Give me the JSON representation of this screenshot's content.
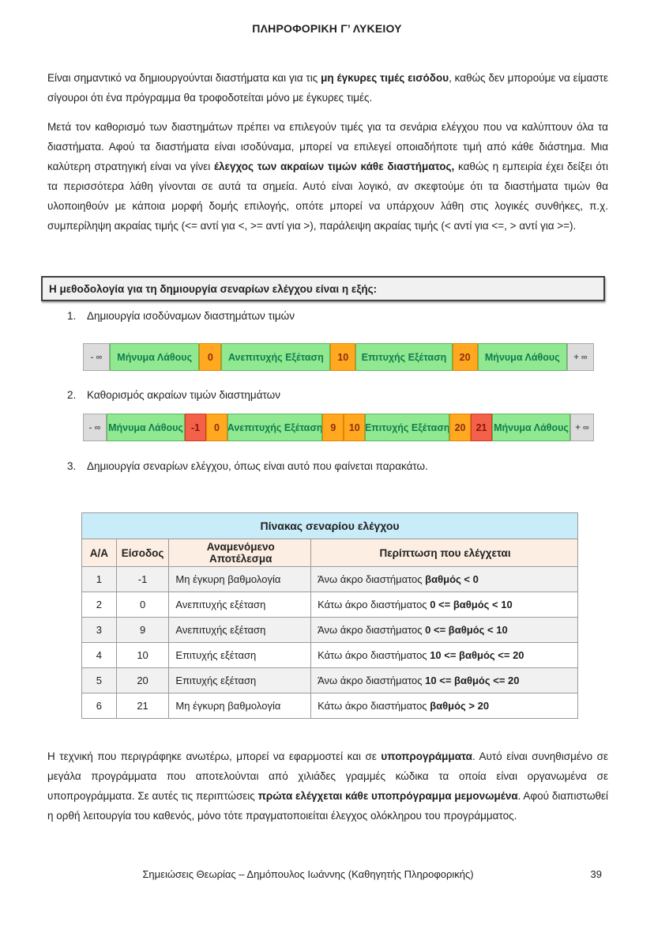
{
  "header": {
    "title": "ΠΛΗΡΟΦΟΡΙΚΗ Γ’ ΛΥΚΕΙΟΥ"
  },
  "paragraphs": {
    "p1": {
      "parts": [
        "Είναι σημαντικό να δημιουργούνται διαστήματα και για τις ",
        "μη έγκυρες τιμές εισόδου",
        ", καθώς δεν μπορούμε να είμαστε σίγουροι ότι ένα πρόγραμμα θα τροφοδοτείται μόνο με έγκυρες τιμές."
      ]
    },
    "p2": {
      "parts": [
        "Μετά τον καθορισμό των διαστημάτων πρέπει να επιλεγούν τιμές για τα σενάρια ελέγχου που να καλύπτουν όλα τα διαστήματα. Αφού τα διαστήματα είναι ισοδύναμα, μπορεί να επιλεγεί οποιαδήποτε τιμή από κάθε διάστημα. Μια καλύτερη στρατηγική είναι να γίνει ",
        "έλεγχος των ακραίων τιμών κάθε διαστήματος,",
        " καθώς η εμπειρία έχει δείξει ότι τα περισσότερα λάθη γίνονται σε αυτά τα σημεία. Αυτό είναι λογικό, αν σκεφτούμε ότι τα διαστήματα τιμών θα υλοποιηθούν με κάποια μορφή δομής επιλογής, οπότε μπορεί να υπάρχουν λάθη στις λογικές συνθήκες, π.χ. συμπερίληψη ακραίας τιμής (<= αντί για <, >= αντί για >), παράλειψη ακραίας τιμής (< αντί για <=, > αντί για >=)."
      ]
    },
    "p3": {
      "parts": [
        "Η τεχνική που περιγράφηκε ανωτέρω, μπορεί να εφαρμοστεί και σε ",
        "υποπρογράμματα",
        ". Αυτό είναι συνηθισμένο σε μεγάλα προγράμματα που αποτελούνται από χιλιάδες γραμμές κώδικα τα οποία είναι οργανωμένα σε υποπρογράμματα. Σε αυτές τις περιπτώσεις ",
        "πρώτα ελέγχεται κάθε υποπρόγραμμα μεμονωμένα",
        ". Αφού διαπιστωθεί η ορθή λειτουργία του καθενός, μόνο τότε πραγματοποιείται έλεγχος ολόκληρου του προγράμματος."
      ]
    }
  },
  "methodology_box": {
    "title": "Η μεθοδολογία για τη δημιουργία σεναρίων ελέγχου είναι η εξής:"
  },
  "steps": [
    {
      "number": "1.",
      "label": "Δημιουργία ισοδύναμων διαστημάτων τιμών"
    },
    {
      "number": "2.",
      "label": "Καθορισμός ακραίων τιμών διαστημάτων"
    },
    {
      "number": "3.",
      "label": "Δημιουργία σεναρίων ελέγχου, όπως είναι αυτό που φαίνεται παρακάτω."
    }
  ],
  "interval_bar_1": {
    "cells": [
      {
        "label": "- ∞",
        "type": "gray"
      },
      {
        "label": "Μήνυμα Λάθους",
        "type": "green"
      },
      {
        "label": "0",
        "type": "orange"
      },
      {
        "label": "Ανεπιτυχής Εξέταση",
        "type": "green"
      },
      {
        "label": "10",
        "type": "orange"
      },
      {
        "label": "Επιτυχής Εξέταση",
        "type": "green"
      },
      {
        "label": "20",
        "type": "orange"
      },
      {
        "label": "Μήνυμα Λάθους",
        "type": "green"
      },
      {
        "label": "+ ∞",
        "type": "gray"
      }
    ]
  },
  "interval_bar_2": {
    "cells": [
      {
        "label": "- ∞",
        "type": "gray"
      },
      {
        "label": "Μήνυμα Λάθους",
        "type": "green"
      },
      {
        "label": "-1",
        "type": "red"
      },
      {
        "label": "0",
        "type": "orange"
      },
      {
        "label": "Ανεπιτυχής Εξέταση",
        "type": "green"
      },
      {
        "label": "9",
        "type": "orange"
      },
      {
        "label": "10",
        "type": "orange"
      },
      {
        "label": "Επιτυχής Εξέταση",
        "type": "green"
      },
      {
        "label": "20",
        "type": "orange"
      },
      {
        "label": "21",
        "type": "red"
      },
      {
        "label": "Μήνυμα Λάθους",
        "type": "green"
      },
      {
        "label": "+ ∞",
        "type": "gray"
      }
    ]
  },
  "test_table": {
    "title": "Πίνακας σεναρίου ελέγχου",
    "headers": [
      "Α/Α",
      "Είσοδος",
      "Αναμενόμενο Αποτέλεσμα",
      "Περίπτωση που ελέγχεται"
    ],
    "rows": [
      {
        "aa": "1",
        "input": "-1",
        "expected": "Μη έγκυρη βαθμολογία",
        "case_prefix": "Άνω άκρο διαστήματος ",
        "case_bold": "βαθμός < 0"
      },
      {
        "aa": "2",
        "input": "0",
        "expected": "Ανεπιτυχής εξέταση",
        "case_prefix": "Κάτω άκρο διαστήματος ",
        "case_bold": "0 <= βαθμός < 10"
      },
      {
        "aa": "3",
        "input": "9",
        "expected": "Ανεπιτυχής εξέταση",
        "case_prefix": "Άνω άκρο διαστήματος ",
        "case_bold": "0 <= βαθμός < 10"
      },
      {
        "aa": "4",
        "input": "10",
        "expected": "Επιτυχής εξέταση",
        "case_prefix": "Κάτω άκρο διαστήματος ",
        "case_bold": "10 <= βαθμός <= 20"
      },
      {
        "aa": "5",
        "input": "20",
        "expected": "Επιτυχής εξέταση",
        "case_prefix": "Άνω άκρο διαστήματος ",
        "case_bold": "10 <= βαθμός <= 20"
      },
      {
        "aa": "6",
        "input": "21",
        "expected": "Μη έγκυρη βαθμολογία",
        "case_prefix": "Κάτω άκρο διαστήματος ",
        "case_bold": "βαθμός > 20"
      }
    ]
  },
  "footer": {
    "text": "Σημειώσεις Θεωρίας – Δημόπουλος Ιωάννης (Καθηγητής Πληροφορικής)",
    "page_number": "39"
  },
  "colors": {
    "interval_green": "#90e890",
    "interval_orange": "#ffa820",
    "interval_red": "#f4614a",
    "interval_gray": "#dcdcdc",
    "table_title_bg": "#c9ecf9",
    "table_header_bg": "#fceee2",
    "table_alt_row_bg": "#f1f1f1",
    "method_box_bg": "#f1f1f1"
  }
}
